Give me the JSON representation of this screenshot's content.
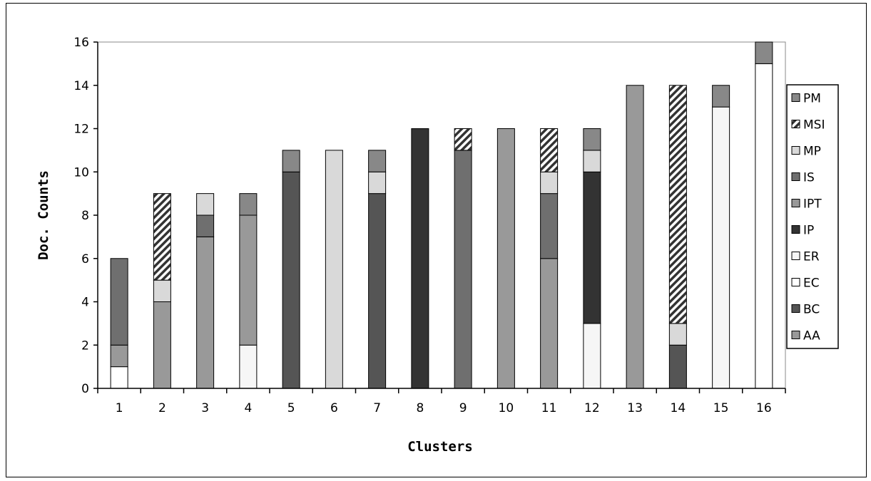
{
  "chart_data": {
    "type": "bar",
    "stacked": true,
    "title": "",
    "xlabel": "Clusters",
    "ylabel": "Doc. Counts",
    "ylim": [
      0,
      16
    ],
    "yticks": [
      0,
      2,
      4,
      6,
      8,
      10,
      12,
      14,
      16
    ],
    "grid": false,
    "legend_position": "right",
    "categories": [
      "1",
      "2",
      "3",
      "4",
      "5",
      "6",
      "7",
      "8",
      "9",
      "10",
      "11",
      "12",
      "13",
      "14",
      "15",
      "16"
    ],
    "series": [
      {
        "name": "AA",
        "color": "#999999",
        "pattern": "solid",
        "values": [
          0,
          0,
          0,
          0,
          0,
          0,
          0,
          0,
          0,
          0,
          0,
          0,
          0,
          0,
          0,
          0
        ]
      },
      {
        "name": "BC",
        "color": "#555555",
        "pattern": "solid",
        "values": [
          0,
          0,
          0,
          0,
          10,
          0,
          9,
          0,
          0,
          0,
          0,
          0,
          0,
          2,
          0,
          0
        ]
      },
      {
        "name": "EC",
        "color": "#ffffff",
        "pattern": "solid",
        "values": [
          1,
          0,
          0,
          0,
          0,
          0,
          0,
          0,
          0,
          0,
          0,
          0,
          0,
          0,
          0,
          15
        ]
      },
      {
        "name": "ER",
        "color": "#f6f6f6",
        "pattern": "solid",
        "values": [
          0,
          0,
          0,
          2,
          0,
          0,
          0,
          0,
          0,
          0,
          0,
          3,
          0,
          0,
          13,
          0
        ]
      },
      {
        "name": "IP",
        "color": "#333333",
        "pattern": "solid",
        "values": [
          0,
          0,
          0,
          0,
          0,
          0,
          0,
          12,
          0,
          0,
          0,
          7,
          0,
          0,
          0,
          0
        ]
      },
      {
        "name": "IPT",
        "color": "#999999",
        "pattern": "solid",
        "values": [
          1,
          4,
          7,
          6,
          0,
          0,
          0,
          0,
          0,
          12,
          6,
          0,
          14,
          0,
          0,
          0
        ]
      },
      {
        "name": "IS",
        "color": "#6f6f6f",
        "pattern": "solid",
        "values": [
          4,
          0,
          1,
          0,
          0,
          0,
          0,
          0,
          11,
          0,
          3,
          0,
          0,
          0,
          0,
          0
        ]
      },
      {
        "name": "MP",
        "color": "#d9d9d9",
        "pattern": "solid",
        "values": [
          0,
          1,
          1,
          0,
          0,
          11,
          1,
          0,
          0,
          0,
          1,
          1,
          0,
          1,
          0,
          0
        ]
      },
      {
        "name": "MSI",
        "color": "#444444",
        "pattern": "hatch",
        "values": [
          0,
          4,
          0,
          0,
          0,
          0,
          0,
          0,
          1,
          0,
          2,
          0,
          0,
          11,
          0,
          0
        ]
      },
      {
        "name": "PM",
        "color": "#888888",
        "pattern": "solid",
        "values": [
          0,
          0,
          0,
          1,
          1,
          0,
          1,
          0,
          0,
          0,
          0,
          1,
          0,
          0,
          1,
          1
        ]
      }
    ]
  }
}
